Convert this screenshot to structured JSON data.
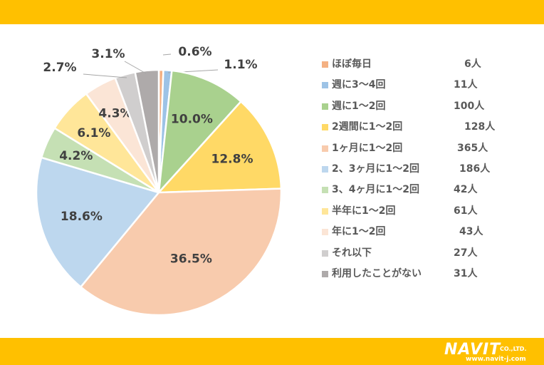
{
  "chart_data": {
    "type": "pie",
    "categories": [
      "ほぼ毎日",
      "週に3～4回",
      "週に1～2回",
      "2週間に1～2回",
      "1ヶ月に1～2回",
      "2、3ヶ月に1～2回",
      "3、4ヶ月に1～2回",
      "半年に1～2回",
      "年に1～2回",
      "それ以下",
      "利用したことがない"
    ],
    "counts": [
      "6人",
      "11人",
      "100人",
      "128人",
      "365人",
      "186人",
      "42人",
      "61人",
      "43人",
      "27人",
      "31人"
    ],
    "values": [
      0.6,
      1.1,
      10.0,
      12.8,
      36.5,
      18.6,
      4.2,
      6.1,
      4.3,
      2.7,
      3.1
    ],
    "labels": [
      "0.6%",
      "1.1%",
      "10.0%",
      "12.8%",
      "36.5%",
      "18.6%",
      "4.2%",
      "6.1%",
      "4.3%",
      "2.7%",
      "3.1%"
    ],
    "colors": [
      "#F4B183",
      "#9DC3E6",
      "#A9D18E",
      "#FFD966",
      "#F8CBAD",
      "#BDD7EE",
      "#C5E0B4",
      "#FFE699",
      "#FBE5D6",
      "#D0CECE",
      "#AEAAAA"
    ],
    "legend": "right"
  },
  "logo": {
    "main": "NAVIT",
    "suffix": "CO.,LTD.",
    "url": "www.navit-j.com"
  }
}
